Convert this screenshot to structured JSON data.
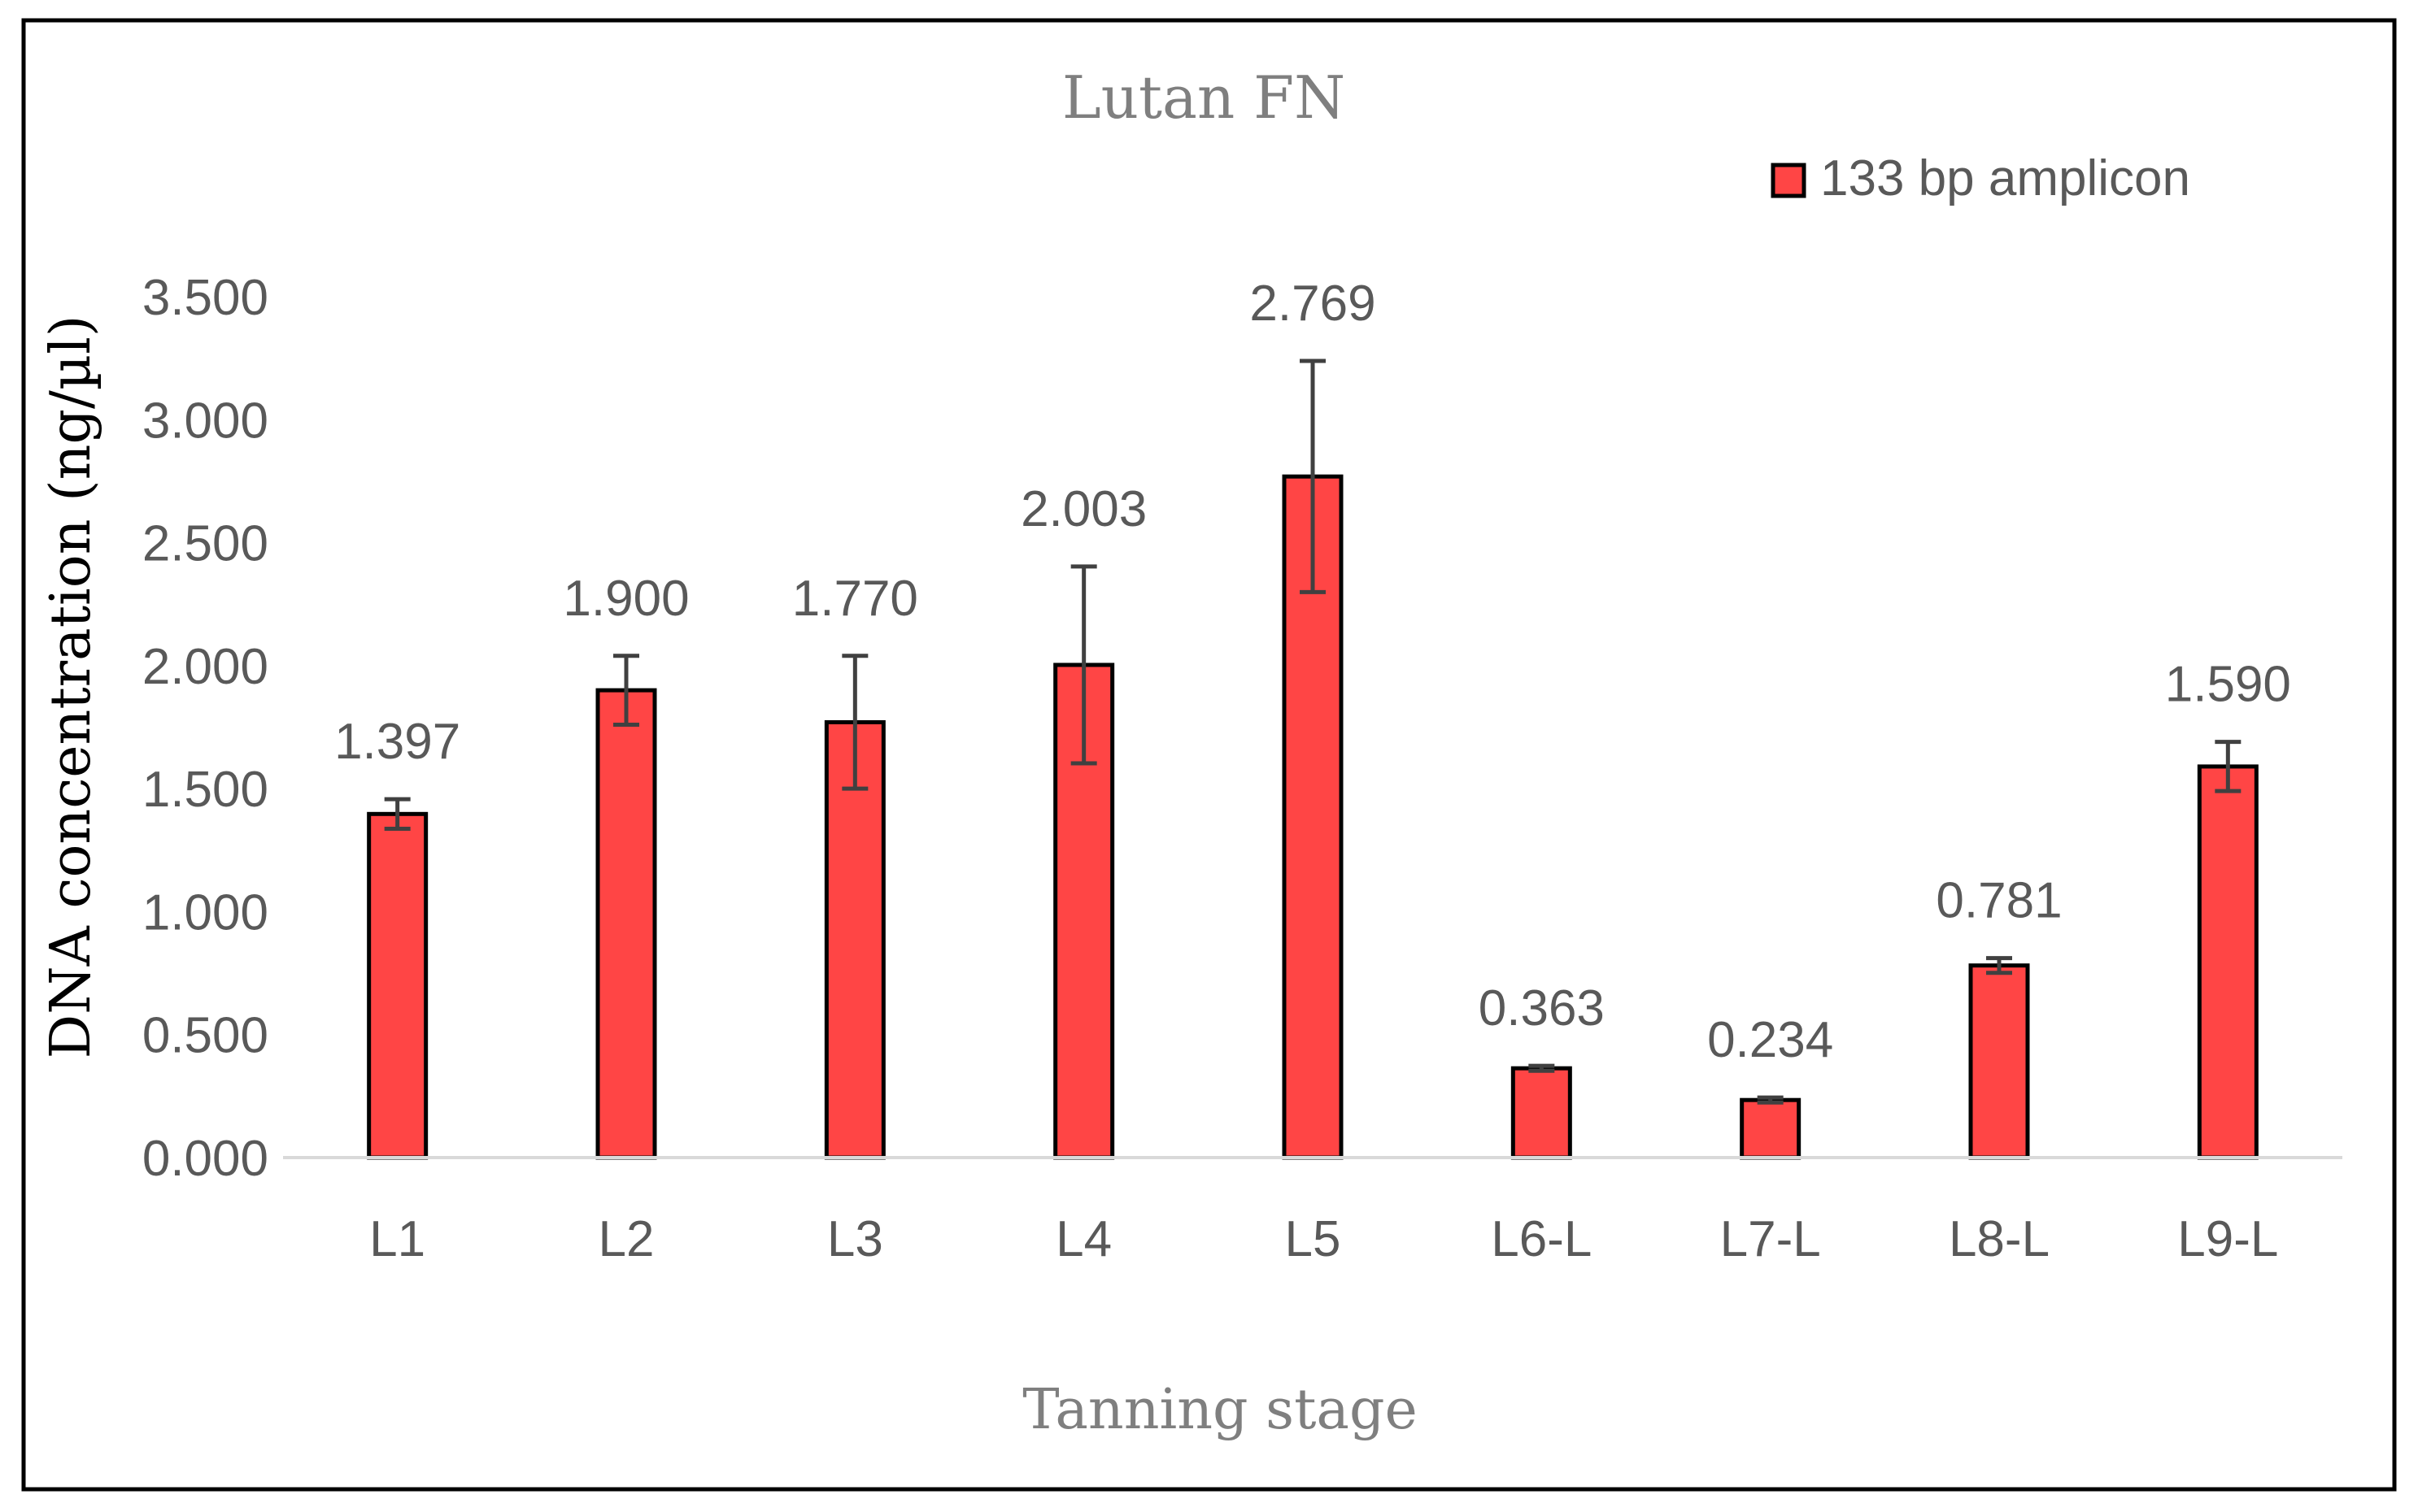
{
  "chart_data": {
    "type": "bar",
    "title": "Lutan FN",
    "xlabel": "Tanning stage",
    "ylabel": "DNA concentration (ng/µl)",
    "categories": [
      "L1",
      "L2",
      "L3",
      "L4",
      "L5",
      "L6-L",
      "L7-L",
      "L8-L",
      "L9-L"
    ],
    "series": [
      {
        "name": "133 bp amplicon",
        "values": [
          1.397,
          1.9,
          1.77,
          2.003,
          2.769,
          0.363,
          0.234,
          0.781,
          1.59
        ],
        "value_labels": [
          "1.397",
          "1.900",
          "1.770",
          "2.003",
          "2.769",
          "0.363",
          "0.234",
          "0.781",
          "1.590"
        ],
        "error": [
          0.06,
          0.14,
          0.27,
          0.4,
          0.47,
          0.01,
          0.01,
          0.03,
          0.1
        ],
        "color": "#ff4545",
        "edge_color": "#000000"
      }
    ],
    "ylim": [
      0,
      3.5
    ],
    "yticks": [
      0,
      0.5,
      1.0,
      1.5,
      2.0,
      2.5,
      3.0,
      3.5
    ],
    "ytick_labels": [
      "0.000",
      "0.500",
      "1.000",
      "1.500",
      "2.000",
      "2.500",
      "3.000",
      "3.500"
    ],
    "grid": false,
    "legend_position": "top-right",
    "colors": {
      "text": "#595959",
      "error_bar": "#404040",
      "axis": "#d9d9d9",
      "frame": "#000000"
    }
  }
}
